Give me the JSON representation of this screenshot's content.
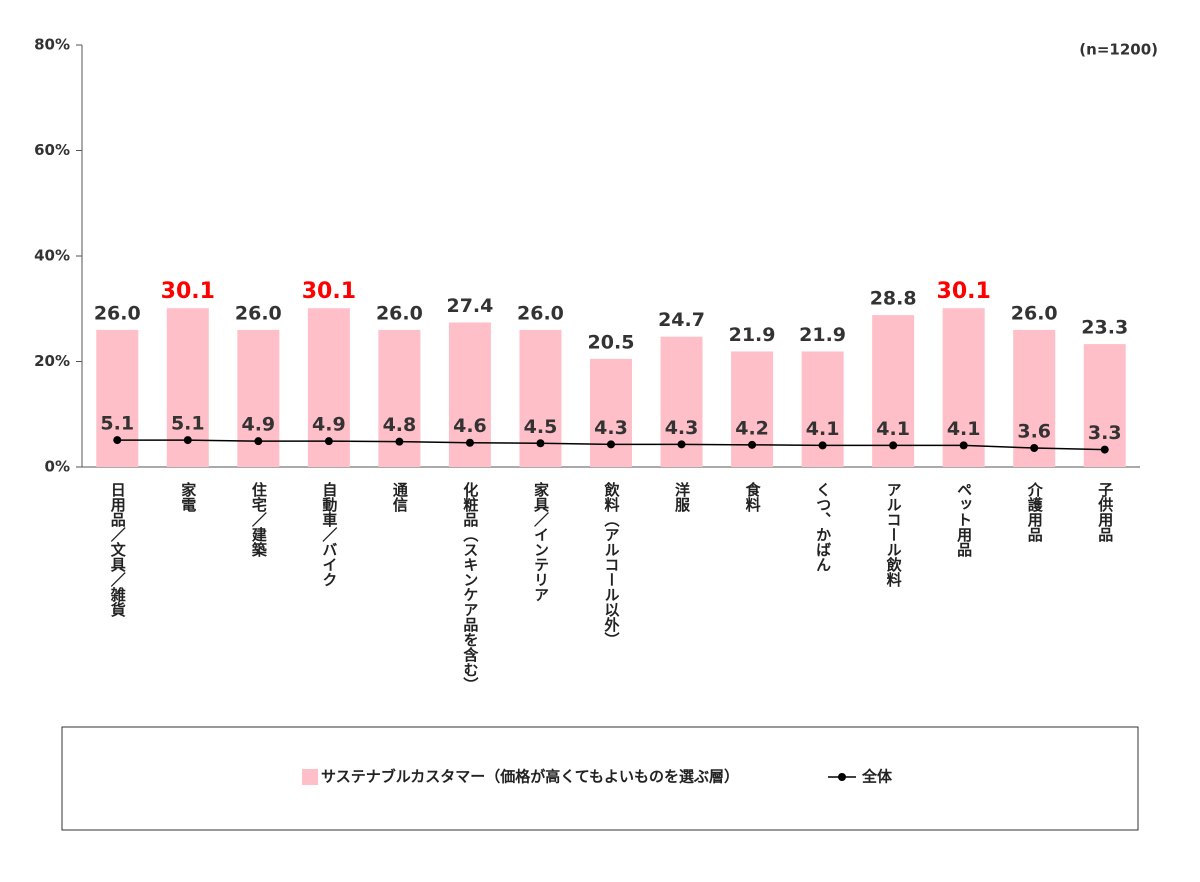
{
  "chart_data": {
    "type": "bar_line",
    "note": "(n=1200)",
    "categories": [
      "日用品／文具／雑貨",
      "家電",
      "住宅／建築",
      "自動車／バイク",
      "通信",
      "化粧品（スキンケア品を含む）",
      "家具／インテリア",
      "飲料（アルコール以外）",
      "洋服",
      "食料",
      "くつ、かばん",
      "アルコール飲料",
      "ペット用品",
      "介護用品",
      "子供用品"
    ],
    "series": [
      {
        "name": "サステナブルカスタマー（価格が高くてもよいものを選ぶ層）",
        "type": "bar",
        "color": "#ffbfc9",
        "values": [
          26.0,
          30.1,
          26.0,
          30.1,
          26.0,
          27.4,
          26.0,
          20.5,
          24.7,
          21.9,
          21.9,
          28.8,
          30.1,
          26.0,
          23.3
        ],
        "value_labels": [
          "26.0",
          "30.1",
          "26.0",
          "30.1",
          "26.0",
          "27.4",
          "26.0",
          "20.5",
          "24.7",
          "21.9",
          "21.9",
          "28.8",
          "30.1",
          "26.0",
          "23.3"
        ],
        "label_colors": [
          "#333333",
          "#ff0000",
          "#333333",
          "#ff0000",
          "#333333",
          "#333333",
          "#333333",
          "#333333",
          "#333333",
          "#333333",
          "#333333",
          "#333333",
          "#ff0000",
          "#333333",
          "#333333"
        ]
      },
      {
        "name": "全体",
        "type": "line",
        "color": "#000000",
        "values": [
          5.1,
          5.1,
          4.9,
          4.9,
          4.8,
          4.6,
          4.5,
          4.3,
          4.3,
          4.2,
          4.1,
          4.1,
          4.1,
          3.6,
          3.3
        ],
        "value_labels": [
          "5.1",
          "5.1",
          "4.9",
          "4.9",
          "4.8",
          "4.6",
          "4.5",
          "4.3",
          "4.3",
          "4.2",
          "4.1",
          "4.1",
          "4.1",
          "3.6",
          "3.3"
        ]
      }
    ],
    "ylim": [
      0,
      80
    ],
    "yticks": [
      {
        "value": 0,
        "label": "0%"
      },
      {
        "value": 20,
        "label": "20%"
      },
      {
        "value": 40,
        "label": "40%"
      },
      {
        "value": 60,
        "label": "60%"
      },
      {
        "value": 80,
        "label": "80%"
      }
    ]
  }
}
